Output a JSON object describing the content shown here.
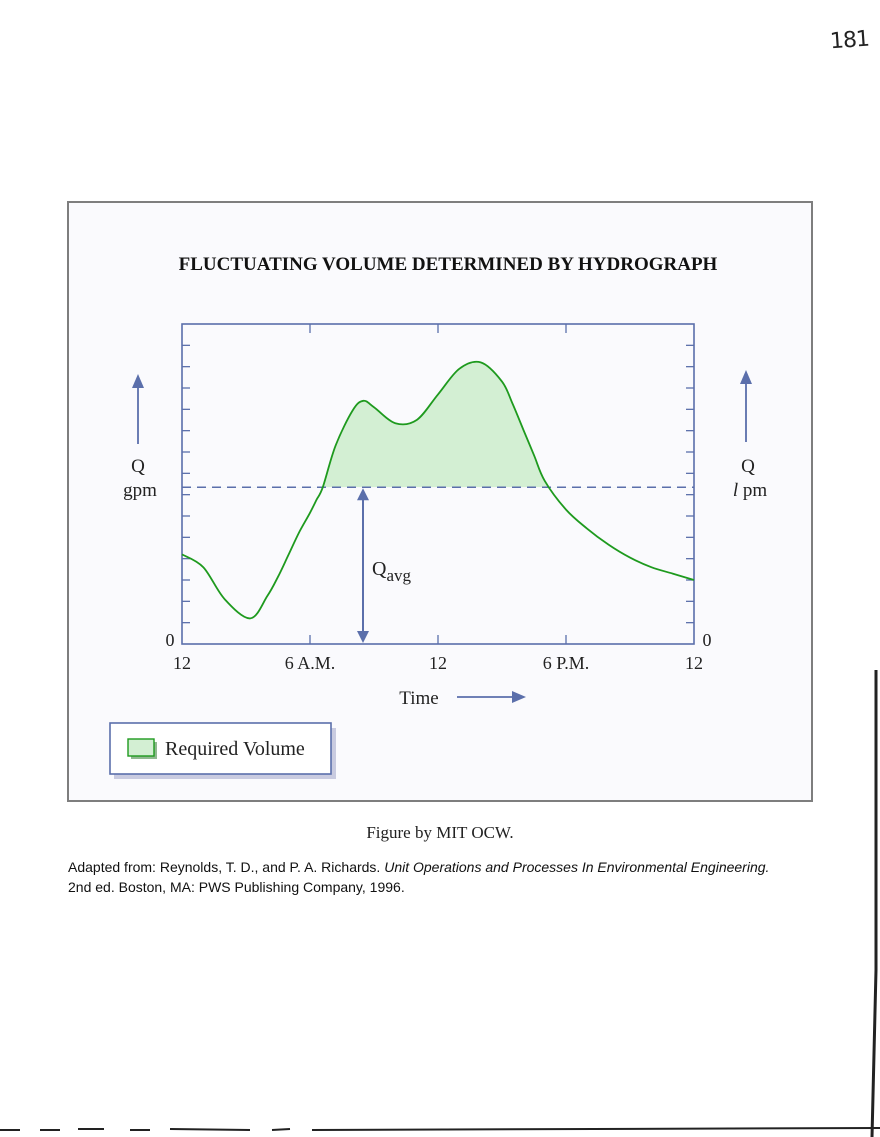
{
  "page_number": "181",
  "chart_data": {
    "type": "area",
    "title": "FLUCTUATING VOLUME DETERMINED BY HYDROGRAPH",
    "xlabel": "Time",
    "ylabel_left": [
      "Q",
      "gpm"
    ],
    "ylabel_right": [
      "Q",
      "l",
      "pm"
    ],
    "x_tick_labels": [
      "12",
      "6 A.M.",
      "12",
      "6 P.M.",
      "12"
    ],
    "x_ticks_hours": [
      0,
      6,
      12,
      18,
      24
    ],
    "xlim": [
      0,
      24
    ],
    "ylim": [
      0,
      1
    ],
    "y_zero_left": "0",
    "y_zero_right": "0",
    "qavg_label_main": "Q",
    "qavg_label_sub": "avg",
    "qavg": 0.49,
    "grid": false,
    "series": [
      {
        "name": "",
        "color": "#1e9a1e",
        "x": [
          0,
          1,
          2,
          3.2,
          4,
          4.5,
          5,
          5.5,
          6,
          6.3,
          6.6,
          7.2,
          8,
          8.5,
          9,
          10,
          11,
          12,
          13,
          14,
          15,
          15.5,
          16,
          16.5,
          17,
          18,
          19,
          20,
          21,
          22,
          23,
          24
        ],
        "y": [
          0.28,
          0.24,
          0.14,
          0.08,
          0.15,
          0.21,
          0.28,
          0.35,
          0.41,
          0.45,
          0.49,
          0.62,
          0.73,
          0.76,
          0.74,
          0.69,
          0.7,
          0.78,
          0.86,
          0.88,
          0.82,
          0.75,
          0.67,
          0.59,
          0.51,
          0.42,
          0.36,
          0.31,
          0.27,
          0.24,
          0.22,
          0.2
        ]
      }
    ],
    "fill_color": "#d3efd3",
    "axis_color": "#5b6fab",
    "legend": {
      "label": "Required Volume",
      "position": "bottom-left"
    }
  },
  "caption": "Figure by MIT OCW.",
  "citation": {
    "prefix": "Adapted from: Reynolds, T. D., and P. A. Richards. ",
    "title": "Unit Operations and Processes In Environmental Engineering.",
    "suffix": "2nd ed. Boston, MA: PWS Publishing Company, 1996."
  }
}
